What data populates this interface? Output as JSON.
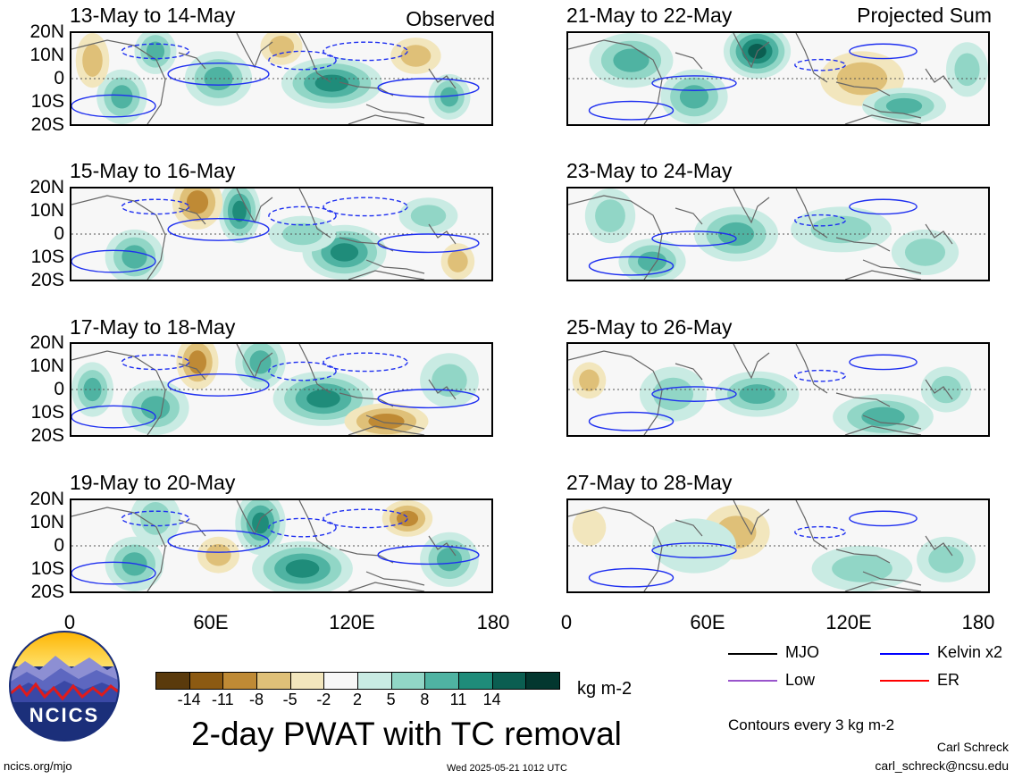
{
  "panels": [
    {
      "title": "13-May to 14-May",
      "tag": "Observed"
    },
    {
      "title": "21-May to 22-May",
      "tag": "Projected Sum"
    },
    {
      "title": "15-May to 16-May",
      "tag": ""
    },
    {
      "title": "23-May to 24-May",
      "tag": ""
    },
    {
      "title": "17-May to 18-May",
      "tag": ""
    },
    {
      "title": "25-May to 26-May",
      "tag": ""
    },
    {
      "title": "19-May to 20-May",
      "tag": ""
    },
    {
      "title": "27-May to 28-May",
      "tag": ""
    }
  ],
  "lat_labels": [
    "20N",
    "10N",
    "0",
    "10S",
    "20S"
  ],
  "lon_labels": [
    "0",
    "60E",
    "120E",
    "180"
  ],
  "colorbar": {
    "colors": [
      "#5a3a0c",
      "#8c5a12",
      "#bf8a35",
      "#dfc078",
      "#f2e6bd",
      "#f7f7f7",
      "#c9ebe3",
      "#91d6c6",
      "#4fb3a2",
      "#1f8c7a",
      "#0b5e51",
      "#03372f"
    ],
    "labels": [
      "-14",
      "-11",
      "-8",
      "-5",
      "-2",
      "2",
      "5",
      "8",
      "11",
      "14"
    ],
    "unit": "kg m-2"
  },
  "main_title": "2-day PWAT with TC removal",
  "logo_text": "NCICS",
  "legend": {
    "items": [
      {
        "label": "MJO",
        "color": "#000000"
      },
      {
        "label": "Kelvin x2",
        "color": "#0000ff"
      },
      {
        "label": "Low",
        "color": "#9955cc"
      },
      {
        "label": "ER",
        "color": "#ff0000"
      }
    ],
    "note": "Contours every 3 kg m-2"
  },
  "footer": {
    "url": "ncics.org/mjo",
    "timestamp": "Wed 2025-05-21 1012 UTC",
    "author": "Carl Schreck",
    "email": "carl_schreck@ncsu.edu"
  },
  "observed_blobs": [
    [
      [
        0.62,
        0.55,
        0.12,
        0.28,
        11
      ],
      [
        0.35,
        0.5,
        0.08,
        0.3,
        9
      ],
      [
        0.2,
        0.2,
        0.05,
        0.25,
        8
      ],
      [
        0.82,
        0.25,
        0.06,
        0.2,
        -7
      ],
      [
        0.5,
        0.15,
        0.05,
        0.2,
        -6
      ],
      [
        0.12,
        0.7,
        0.06,
        0.3,
        8
      ],
      [
        0.9,
        0.7,
        0.05,
        0.25,
        10
      ],
      [
        0.05,
        0.3,
        0.04,
        0.3,
        -5
      ]
    ],
    [
      [
        0.4,
        0.25,
        0.05,
        0.35,
        13
      ],
      [
        0.65,
        0.7,
        0.1,
        0.3,
        12
      ],
      [
        0.3,
        0.15,
        0.06,
        0.3,
        -9
      ],
      [
        0.15,
        0.75,
        0.07,
        0.3,
        9
      ],
      [
        0.55,
        0.5,
        0.08,
        0.2,
        7
      ],
      [
        0.85,
        0.3,
        0.07,
        0.2,
        6
      ],
      [
        0.92,
        0.8,
        0.04,
        0.2,
        -6
      ]
    ],
    [
      [
        0.6,
        0.6,
        0.12,
        0.3,
        12
      ],
      [
        0.3,
        0.2,
        0.05,
        0.3,
        -8
      ],
      [
        0.2,
        0.7,
        0.08,
        0.3,
        9
      ],
      [
        0.75,
        0.85,
        0.1,
        0.2,
        -10
      ],
      [
        0.45,
        0.2,
        0.06,
        0.3,
        10
      ],
      [
        0.9,
        0.4,
        0.07,
        0.3,
        7
      ],
      [
        0.05,
        0.5,
        0.05,
        0.3,
        8
      ]
    ],
    [
      [
        0.45,
        0.25,
        0.06,
        0.35,
        12
      ],
      [
        0.55,
        0.75,
        0.12,
        0.3,
        13
      ],
      [
        0.15,
        0.7,
        0.07,
        0.3,
        8
      ],
      [
        0.8,
        0.2,
        0.06,
        0.2,
        -8
      ],
      [
        0.9,
        0.65,
        0.07,
        0.3,
        9
      ],
      [
        0.35,
        0.6,
        0.05,
        0.2,
        -5
      ],
      [
        0.2,
        0.2,
        0.06,
        0.3,
        6
      ]
    ]
  ],
  "projected_blobs": [
    [
      [
        0.45,
        0.2,
        0.08,
        0.3,
        14
      ],
      [
        0.15,
        0.3,
        0.1,
        0.3,
        8
      ],
      [
        0.7,
        0.5,
        0.1,
        0.3,
        -7
      ],
      [
        0.8,
        0.8,
        0.1,
        0.2,
        10
      ],
      [
        0.3,
        0.7,
        0.08,
        0.3,
        9
      ],
      [
        0.95,
        0.4,
        0.05,
        0.3,
        7
      ]
    ],
    [
      [
        0.4,
        0.5,
        0.1,
        0.3,
        10
      ],
      [
        0.2,
        0.8,
        0.08,
        0.25,
        8
      ],
      [
        0.65,
        0.45,
        0.12,
        0.25,
        7
      ],
      [
        0.85,
        0.7,
        0.08,
        0.25,
        6
      ],
      [
        0.1,
        0.3,
        0.06,
        0.3,
        5
      ]
    ],
    [
      [
        0.45,
        0.55,
        0.1,
        0.25,
        9
      ],
      [
        0.75,
        0.8,
        0.12,
        0.25,
        8
      ],
      [
        0.05,
        0.4,
        0.04,
        0.2,
        -7
      ],
      [
        0.25,
        0.55,
        0.08,
        0.3,
        5
      ],
      [
        0.9,
        0.5,
        0.06,
        0.25,
        5
      ]
    ],
    [
      [
        0.4,
        0.35,
        0.08,
        0.3,
        -6
      ],
      [
        0.7,
        0.75,
        0.12,
        0.25,
        7
      ],
      [
        0.3,
        0.5,
        0.1,
        0.3,
        4
      ],
      [
        0.9,
        0.65,
        0.07,
        0.25,
        6
      ],
      [
        0.05,
        0.3,
        0.04,
        0.2,
        -3
      ]
    ]
  ]
}
